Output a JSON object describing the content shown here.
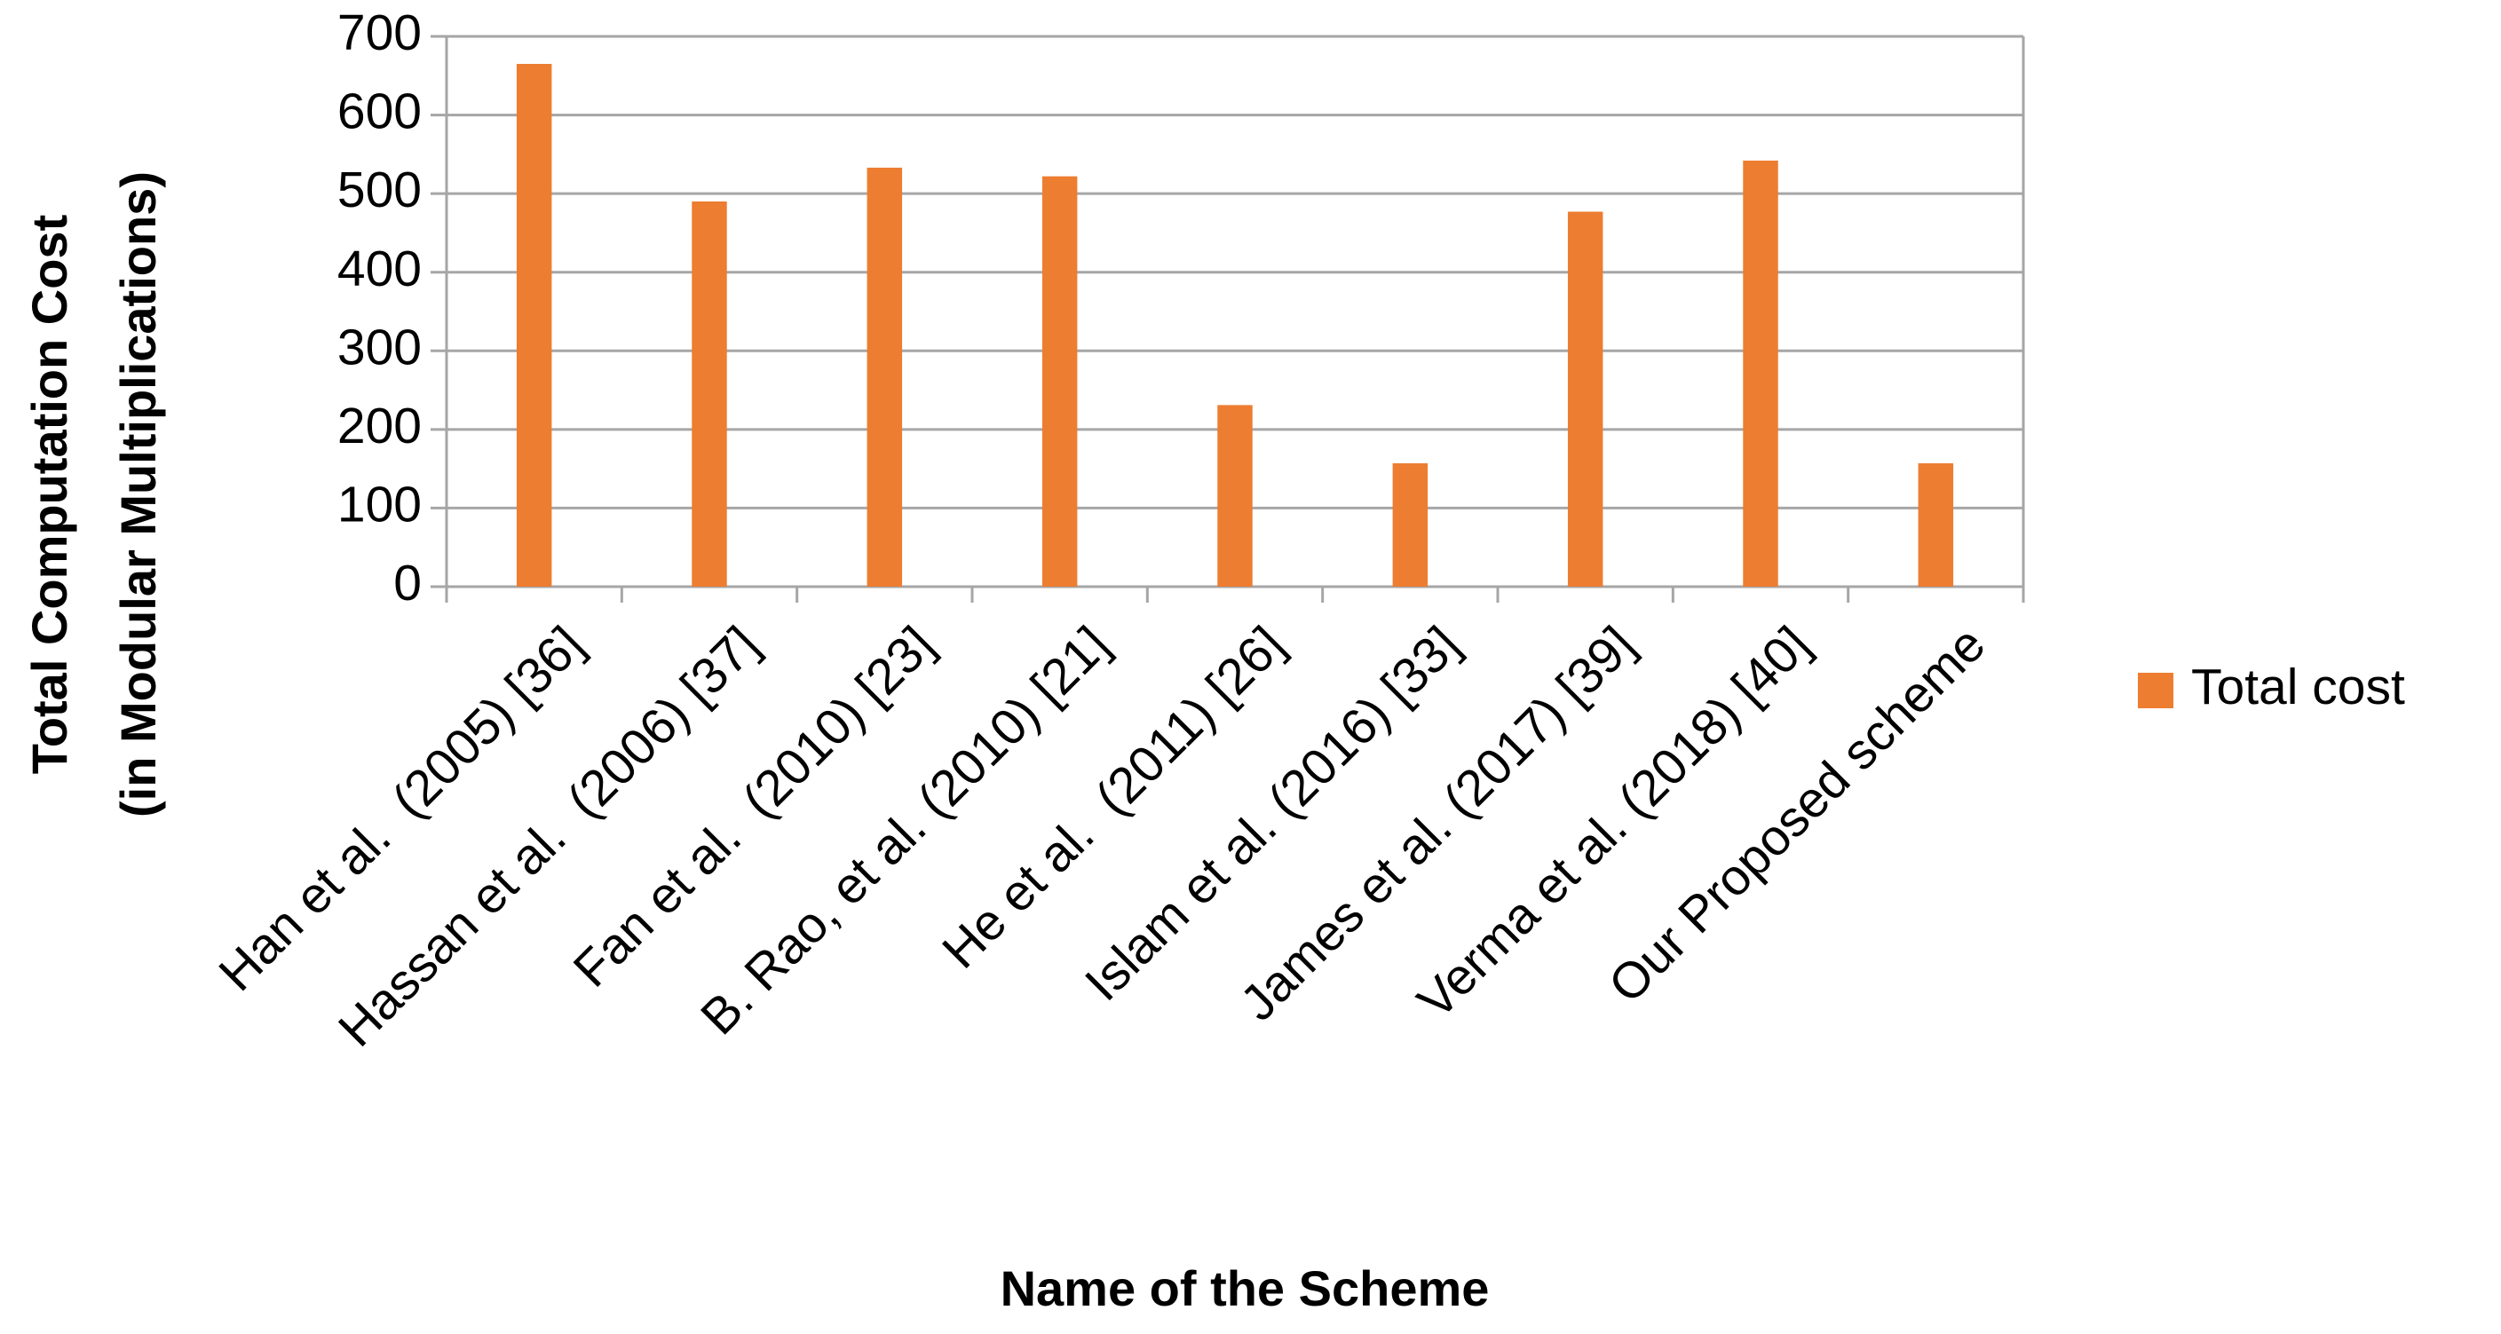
{
  "chart_data": {
    "type": "bar",
    "y_label": [
      "Total Computation Cost",
      "(in Modular Multiplications)"
    ],
    "x_label": "Name of the Scheme",
    "categories": [
      "Han et al.  (2005) [36]",
      "Hassan et al.  (2006) [37]",
      "Fan et al.  (2010) [23]",
      "B. Rao, et al. (2010) [21]",
      "He et al.  (2011) [26]",
      "Islam et al. (2016) [33]",
      "James et al. (2017) [39]",
      "Verma et al. (2018) [40]",
      "Our Proposed scheme"
    ],
    "series": [
      {
        "name": "Total cost",
        "color": "#ed7d31",
        "values": [
          665,
          490,
          533,
          522,
          231,
          157,
          477,
          542,
          157
        ]
      }
    ],
    "ylim": [
      0,
      700
    ],
    "yticks": [
      0,
      100,
      200,
      300,
      400,
      500,
      600,
      700
    ],
    "grid": true,
    "legend": "right"
  }
}
